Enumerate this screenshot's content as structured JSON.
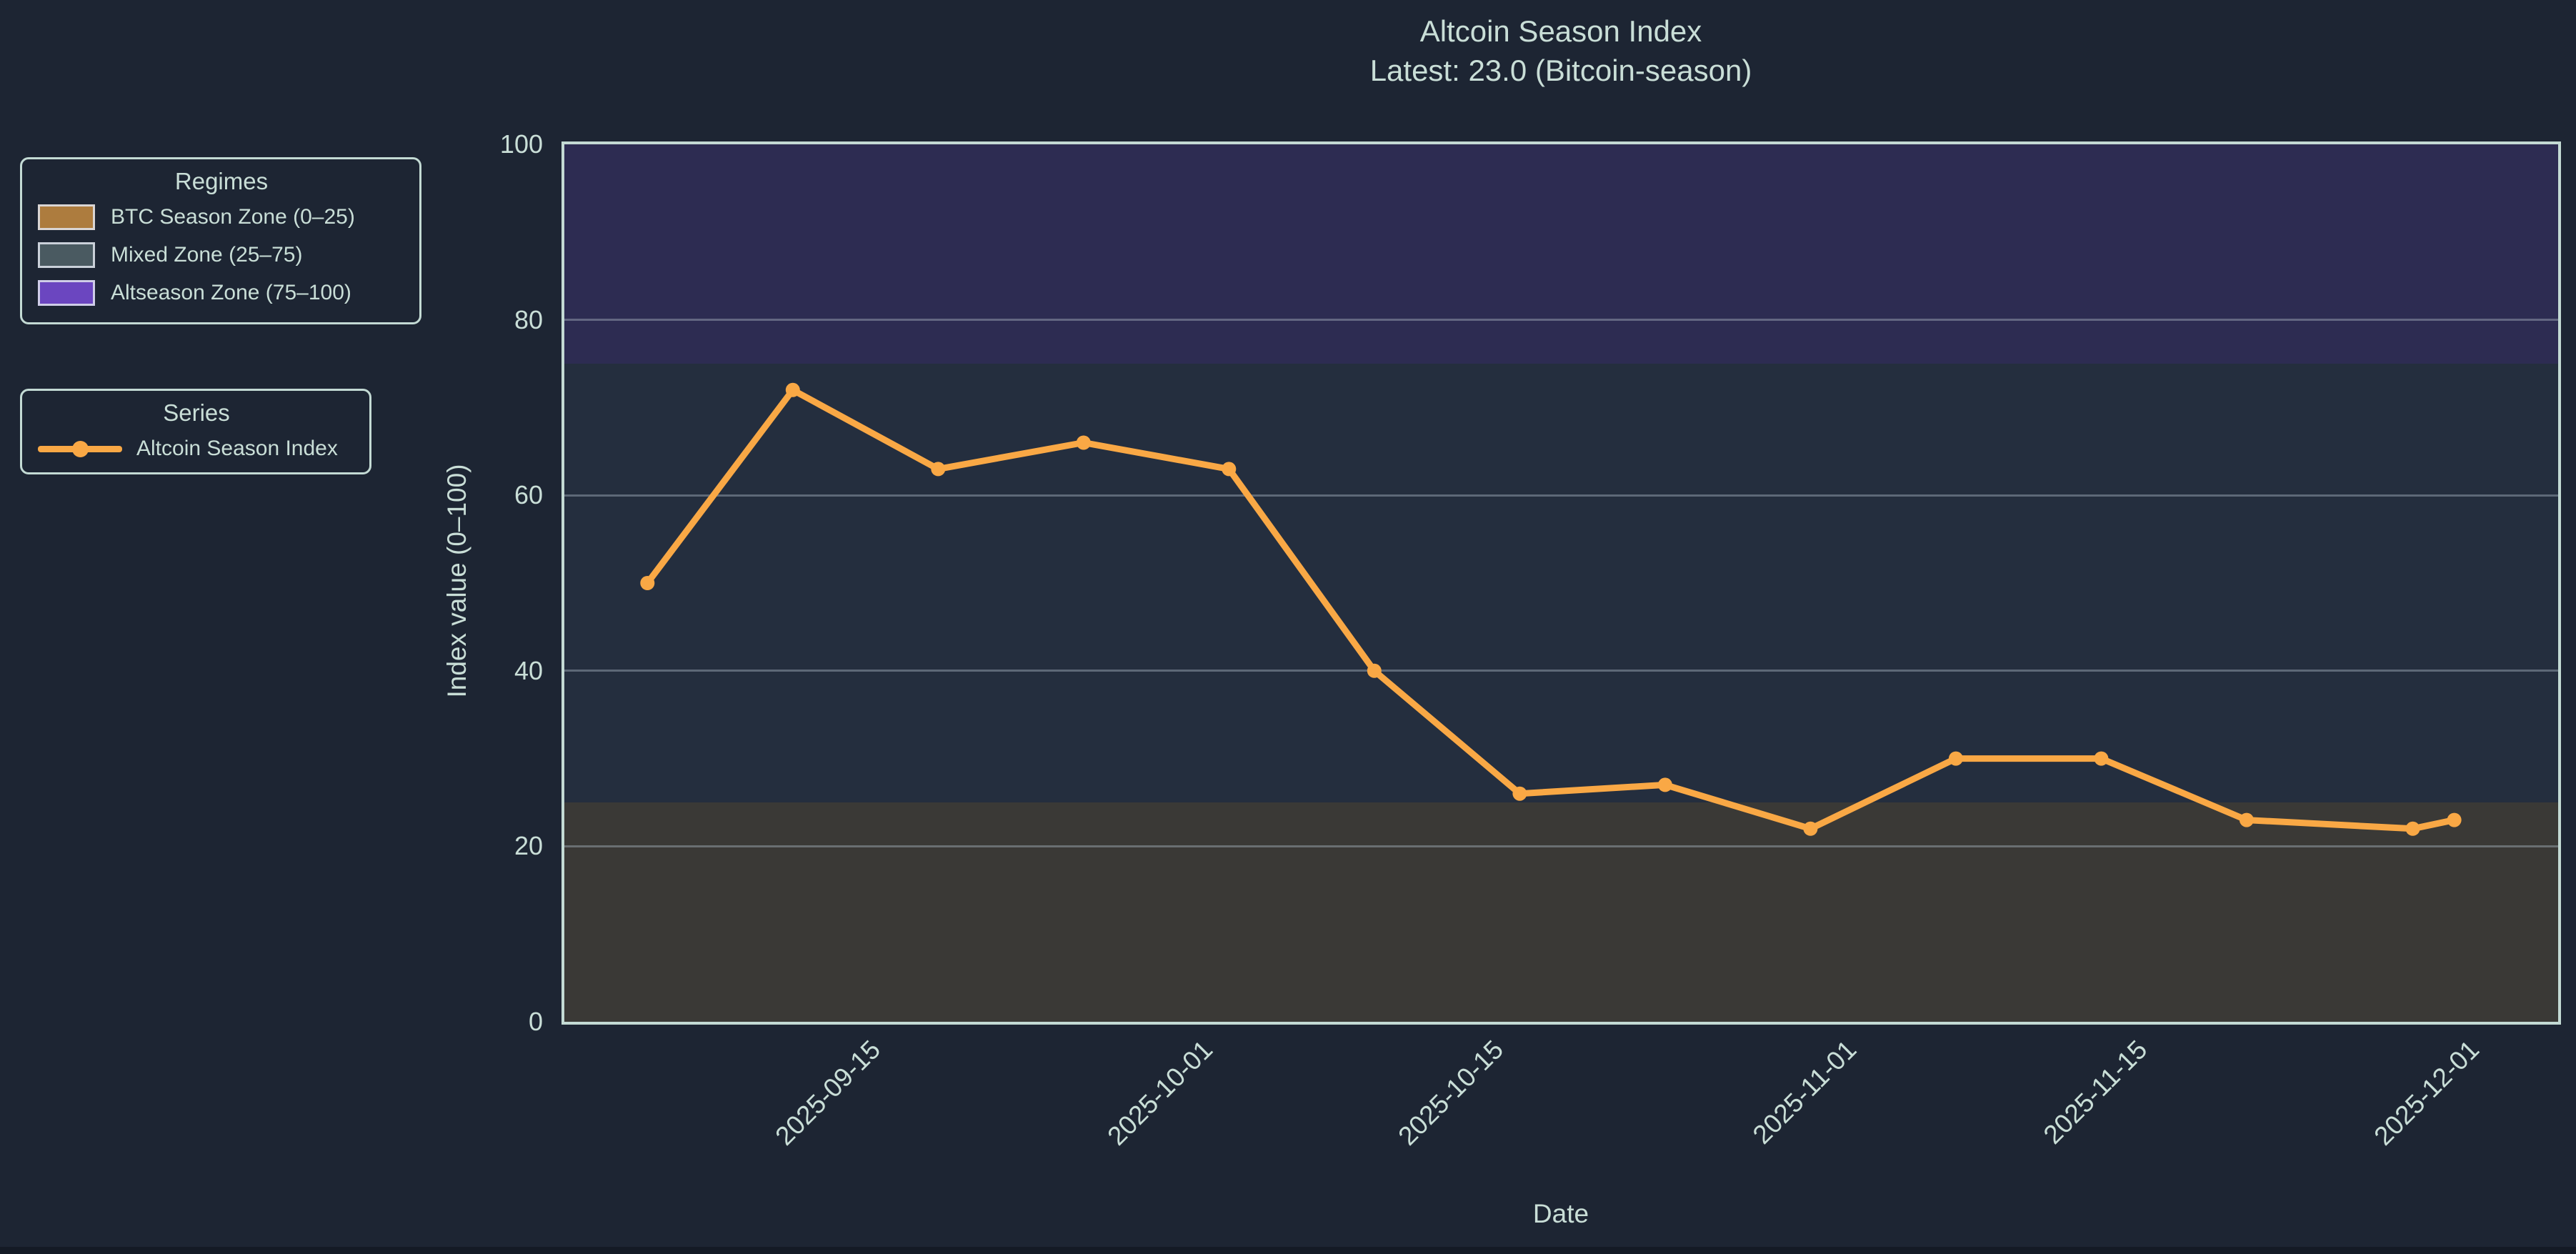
{
  "window": {
    "background": "#1d2533",
    "bottom_edge_color": "#141a25"
  },
  "title": {
    "line1": "Altcoin Season Index",
    "line2": "Latest: 23.0 (Bitcoin-season)"
  },
  "axes": {
    "xlabel": "Date",
    "ylabel": "Index value (0–100)",
    "text_color": "#c9ded7",
    "spine_color": "#c3dad4",
    "gridline_color": "rgba(173,185,198,0.42)"
  },
  "legends": {
    "regimes": {
      "title": "Regimes",
      "items": [
        {
          "label": "BTC Season Zone (0–25)",
          "color": "#ad7c3e"
        },
        {
          "label": "Mixed Zone (25–75)",
          "color": "#4a5a61"
        },
        {
          "label": "Altseason Zone (75–100)",
          "color": "#6b46c0"
        }
      ]
    },
    "series": {
      "title": "Series",
      "items": [
        {
          "label": "Altcoin Season Index",
          "color": "#f9a845",
          "marker": "circle"
        }
      ]
    }
  },
  "chart_data": {
    "type": "line",
    "title": "Altcoin Season Index",
    "subtitle": "Latest: 23.0 (Bitcoin-season)",
    "xlabel": "Date",
    "ylabel": "Index value (0–100)",
    "ylim": [
      0,
      100
    ],
    "x_domain": [
      "2025-09-01",
      "2025-12-06"
    ],
    "yticks": [
      0,
      20,
      40,
      60,
      80,
      100
    ],
    "xticks": [
      "2025-09-15",
      "2025-10-01",
      "2025-10-15",
      "2025-11-01",
      "2025-11-15",
      "2025-12-01"
    ],
    "grid": true,
    "legend_position": "outside-left",
    "zones": [
      {
        "label": "BTC Season Zone (0–25)",
        "from": 0,
        "to": 25,
        "fill": "#3a3936",
        "legend_color": "#ad7c3e"
      },
      {
        "label": "Mixed Zone (25–75)",
        "from": 25,
        "to": 75,
        "fill": "#242e3e",
        "legend_color": "#4a5a61"
      },
      {
        "label": "Altseason Zone (75–100)",
        "from": 75,
        "to": 100,
        "fill": "#2d2c52",
        "legend_color": "#6b46c0"
      }
    ],
    "series": [
      {
        "name": "Altcoin Season Index",
        "color": "#f9a845",
        "marker": "circle",
        "line_width": 9,
        "marker_radius": 10,
        "points": [
          {
            "date": "2025-09-05",
            "value": 50
          },
          {
            "date": "2025-09-12",
            "value": 72
          },
          {
            "date": "2025-09-19",
            "value": 63
          },
          {
            "date": "2025-09-26",
            "value": 66
          },
          {
            "date": "2025-10-03",
            "value": 63
          },
          {
            "date": "2025-10-10",
            "value": 40
          },
          {
            "date": "2025-10-17",
            "value": 26
          },
          {
            "date": "2025-10-24",
            "value": 27
          },
          {
            "date": "2025-10-31",
            "value": 22
          },
          {
            "date": "2025-11-07",
            "value": 30
          },
          {
            "date": "2025-11-14",
            "value": 30
          },
          {
            "date": "2025-11-21",
            "value": 23
          },
          {
            "date": "2025-11-29",
            "value": 22
          },
          {
            "date": "2025-12-01",
            "value": 23
          }
        ]
      }
    ]
  }
}
